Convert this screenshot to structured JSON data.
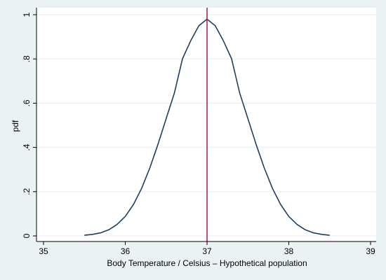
{
  "chart_data": {
    "type": "line",
    "xlabel": "Body Temperature / Celsius – Hypothetical population",
    "ylabel": "pdf",
    "xlim": [
      35,
      39
    ],
    "ylim": [
      0,
      1
    ],
    "x_ticks": [
      35,
      36,
      37,
      38,
      39
    ],
    "x_tick_labels": [
      "35",
      "36",
      "37",
      "38",
      "39"
    ],
    "y_ticks": [
      0,
      0.2,
      0.4,
      0.6,
      0.8,
      1
    ],
    "y_tick_labels": [
      "0",
      ".2",
      ".4",
      ".6",
      ".8",
      "1"
    ],
    "grid": true,
    "series": [
      {
        "x": [
          35.5,
          35.6,
          35.7,
          35.8,
          35.9,
          36.0,
          36.1,
          36.2,
          36.3,
          36.4,
          36.5,
          36.6,
          36.7,
          36.8,
          36.9,
          37.0,
          37.1,
          37.2,
          37.3,
          37.4,
          37.5,
          37.6,
          37.7,
          37.8,
          37.9,
          38.0,
          38.1,
          38.2,
          38.3,
          38.4,
          38.5
        ],
        "values": [
          0.003,
          0.007,
          0.014,
          0.028,
          0.052,
          0.088,
          0.142,
          0.215,
          0.307,
          0.414,
          0.53,
          0.645,
          0.801,
          0.882,
          0.95,
          0.98,
          0.95,
          0.882,
          0.801,
          0.645,
          0.53,
          0.414,
          0.307,
          0.215,
          0.142,
          0.088,
          0.052,
          0.028,
          0.014,
          0.007,
          0.003
        ],
        "color": "#1f3f5f"
      }
    ],
    "reference_line": {
      "x": 37,
      "color": "#b0245a"
    },
    "colors": {
      "background": "#eaf2f3",
      "plot_background": "#ffffff",
      "grid": "#e8eff0",
      "axis": "#000000"
    }
  }
}
